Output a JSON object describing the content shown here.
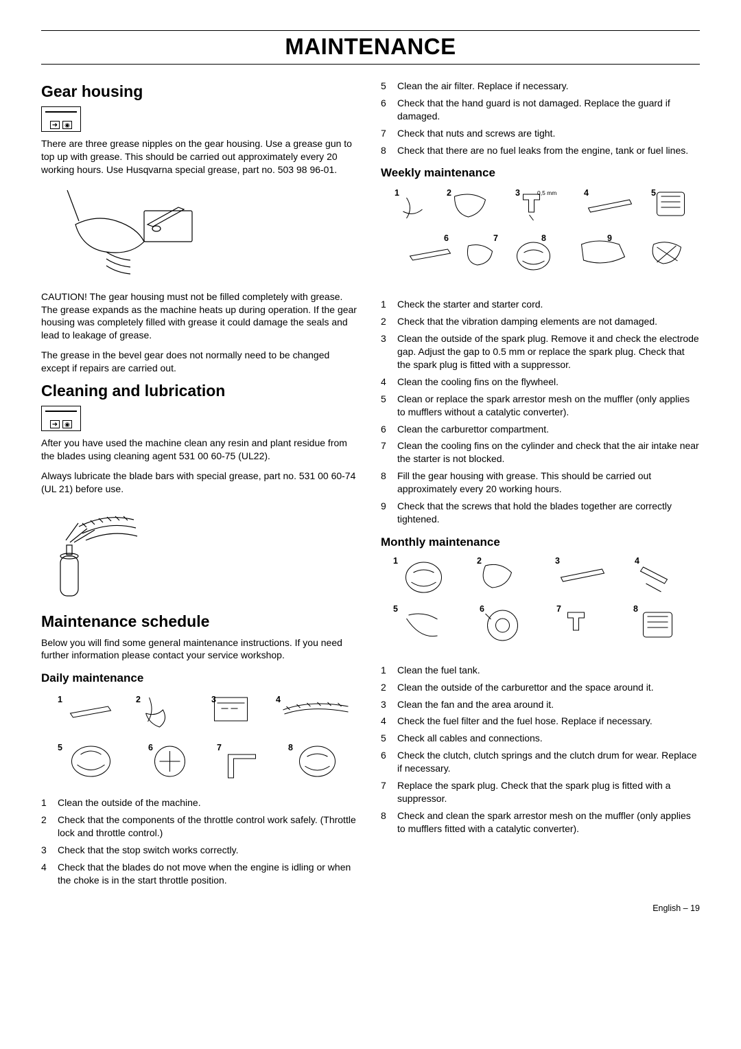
{
  "title": "MAINTENANCE",
  "footer": "English – 19",
  "left": {
    "gear": {
      "heading": "Gear housing",
      "p1": "There are three grease nipples on the gear housing. Use a grease gun to top up with grease. This should be carried out approximately every 20 working hours. Use Husqvarna special grease, part no. 503 98 96-01.",
      "p2": "CAUTION! The gear housing must not be filled completely with grease. The grease expands as the machine heats up during operation. If the gear housing was completely filled with grease it could damage the seals and lead to leakage of grease.",
      "p3": "The grease in the bevel gear does not normally need to be changed except if repairs are carried out."
    },
    "clean": {
      "heading": "Cleaning and lubrication",
      "p1": "After you have used the machine clean any resin and plant residue from the blades using cleaning agent 531 00 60-75 (UL22).",
      "p2": "Always lubricate the blade bars with special grease, part no. 531 00 60-74 (UL 21) before use."
    },
    "sched": {
      "heading": "Maintenance schedule",
      "p1": "Below you will find some general maintenance instructions. If you need further information please contact your service workshop.",
      "daily_h": "Daily maintenance",
      "daily": [
        "Clean the outside of the machine.",
        "Check that the components of the throttle control work safely. (Throttle lock and throttle control.)",
        "Check that the stop switch works correctly.",
        "Check that the blades do not move when the engine is idling or when the choke is in the start throttle position."
      ]
    }
  },
  "right": {
    "daily_cont": [
      "Clean the air filter. Replace if necessary.",
      "Check that the hand guard is not damaged. Replace the guard if damaged.",
      "Check that nuts and screws are tight.",
      "Check that there are no fuel leaks from the engine, tank or fuel lines."
    ],
    "daily_start": 5,
    "weekly_h": "Weekly maintenance",
    "weekly": [
      "Check the starter and starter cord.",
      "Check that the vibration damping elements are not damaged.",
      "Clean the outside of the spark plug. Remove it and check the electrode gap. Adjust the gap to 0.5 mm or replace the spark plug. Check that the spark plug is fitted with a suppressor.",
      "Clean the cooling fins on the flywheel.",
      "Clean or replace the spark arrestor mesh on the muffler (only applies to mufflers without a catalytic converter).",
      "Clean the carburettor compartment.",
      "Clean the cooling fins on the cylinder and check that the air intake near the starter is not blocked.",
      "Fill the gear housing with grease. This should be carried out approximately every 20 working hours.",
      "Check that the screws that hold the blades together are correctly tightened."
    ],
    "monthly_h": "Monthly maintenance",
    "monthly": [
      "Clean the fuel tank.",
      "Clean the outside of the carburettor and the space around it.",
      "Clean the fan and the area around it.",
      "Check the fuel filter and the fuel hose. Replace if necessary.",
      "Check all cables and connections.",
      "Check the clutch, clutch springs and the clutch drum for wear. Replace if necessary.",
      "Replace the spark plug. Check that the spark plug is fitted with a suppressor.",
      "Check and clean the spark arrestor mesh on the muffler (only applies to mufflers fitted with a catalytic converter)."
    ],
    "gap_note": "0,5 mm"
  }
}
